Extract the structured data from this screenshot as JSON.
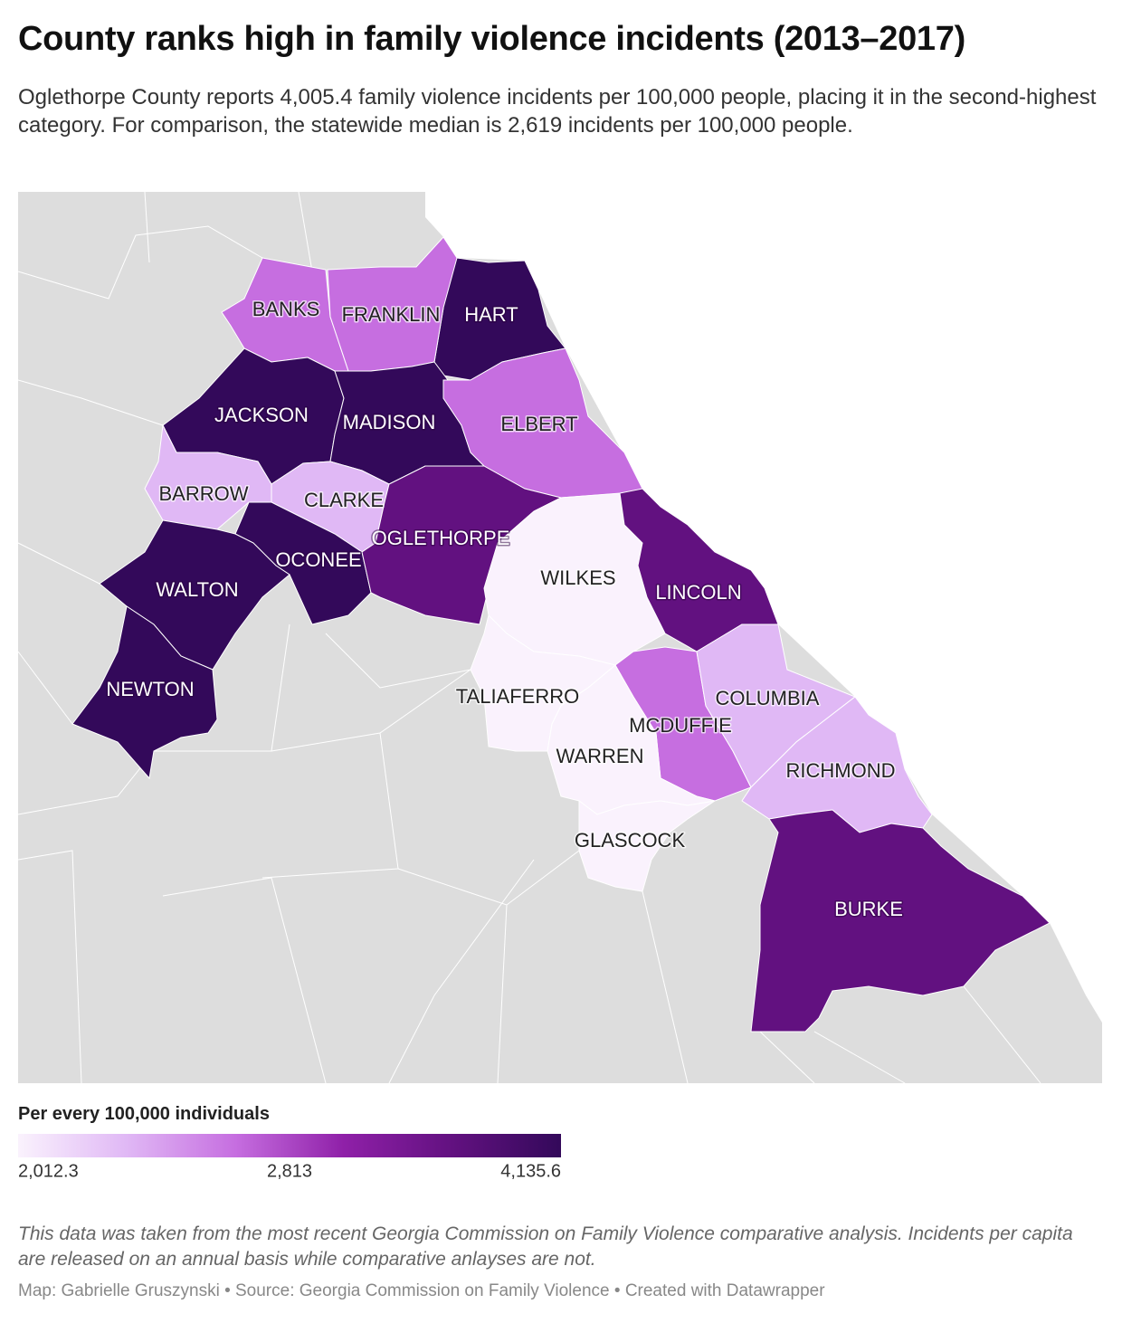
{
  "header": {
    "title": "County ranks high in family violence incidents (2013–2017)",
    "subtitle": "Oglethorpe County reports 4,005.4 family violence incidents per 100,000 people, placing it in the second-highest category. For comparison, the statewide median is 2,619 incidents per 100,000 people."
  },
  "map": {
    "background_color": "#dddddd",
    "counties": [
      {
        "label": "HART",
        "color": "#33095a"
      },
      {
        "label": "BANKS",
        "color": "#c66ee0"
      },
      {
        "label": "FRANKLIN",
        "color": "#c66ee0"
      },
      {
        "label": "JACKSON",
        "color": "#33095a"
      },
      {
        "label": "MADISON",
        "color": "#33095a"
      },
      {
        "label": "ELBERT",
        "color": "#c66ee0"
      },
      {
        "label": "BARROW",
        "color": "#e0b8f5"
      },
      {
        "label": "CLARKE",
        "color": "#e0b8f5"
      },
      {
        "label": "OCONEE",
        "color": "#33095a"
      },
      {
        "label": "OGLETHORPE",
        "color": "#621180"
      },
      {
        "label": "WALTON",
        "color": "#33095a"
      },
      {
        "label": "NEWTON",
        "color": "#33095a"
      },
      {
        "label": "WILKES",
        "color": "#faf2fd"
      },
      {
        "label": "LINCOLN",
        "color": "#621180"
      },
      {
        "label": "TALIAFERRO",
        "color": "#faf2fd"
      },
      {
        "label": "MCDUFFIE",
        "color": "#c66ee0"
      },
      {
        "label": "COLUMBIA",
        "color": "#e0b8f5"
      },
      {
        "label": "RICHMOND",
        "color": "#e0b8f5"
      },
      {
        "label": "WARREN",
        "color": "#faf2fd"
      },
      {
        "label": "GLASCOCK",
        "color": "#faf2fd"
      },
      {
        "label": "BURKE",
        "color": "#621180"
      }
    ]
  },
  "legend": {
    "title": "Per every 100,000 individuals",
    "colors": [
      "#faf2fd",
      "#e0b8f5",
      "#c66ee0",
      "#8f20a8",
      "#621180",
      "#33095a"
    ],
    "ticks": [
      {
        "value": 2012.3,
        "label": "2,012.3"
      },
      {
        "value": 2813,
        "label": "2,813"
      },
      {
        "value": 4135.6,
        "label": "4,135.6"
      }
    ]
  },
  "footer": {
    "note": "This data was taken from the most recent Georgia Commission on Family Violence comparative analysis. Incidents per capita are released on an annual basis while comparative anlayses are not.",
    "byline": "Map: Gabrielle Gruszynski • Source: Georgia Commission on Family Violence • Created with Datawrapper"
  }
}
